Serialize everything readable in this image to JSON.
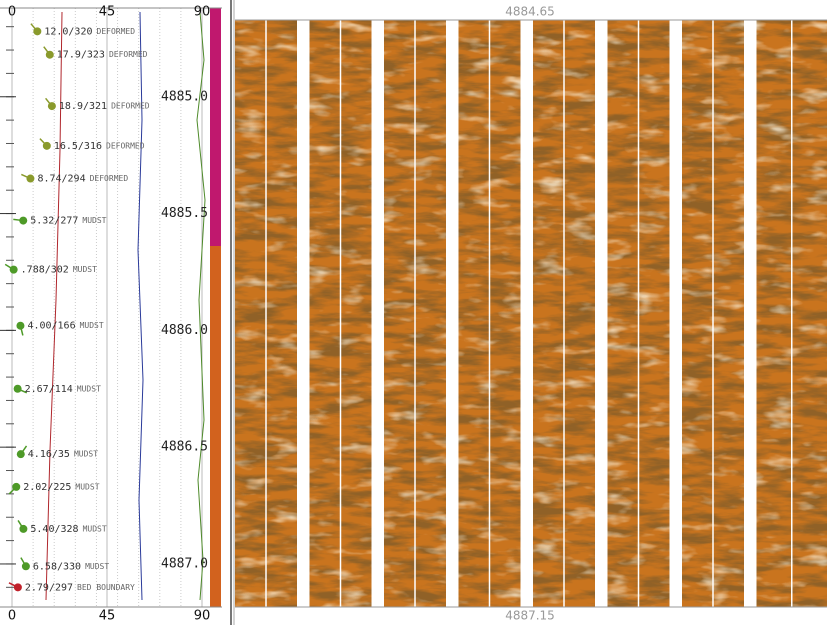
{
  "chart_data": {
    "type": "tadpole",
    "x": [
      12.0,
      17.9,
      18.9,
      16.5,
      8.74,
      5.32,
      0.788,
      4.0,
      2.67,
      4.16,
      2.02,
      5.4,
      6.58,
      2.79
    ],
    "value_labels": [
      "12.0/320",
      "17.9/323",
      "18.9/321",
      "16.5/316",
      "8.74/294",
      "5.32/277",
      ".788/302",
      "4.00/166",
      "2.67/114",
      "4.16/35",
      "2.02/225",
      "5.40/328",
      "6.58/330",
      "2.79/297"
    ],
    "azimuth": [
      320,
      323,
      321,
      316,
      294,
      277,
      302,
      166,
      114,
      35,
      225,
      328,
      330,
      297
    ],
    "y": [
      4884.72,
      4884.82,
      4885.04,
      4885.21,
      4885.35,
      4885.53,
      4885.74,
      4885.98,
      4886.25,
      4886.53,
      4886.67,
      4886.85,
      4887.01,
      4887.1
    ],
    "facies": [
      "DEFORMED",
      "DEFORMED",
      "DEFORMED",
      "DEFORMED",
      "DEFORMED",
      "MUDST",
      "MUDST",
      "MUDST",
      "MUDST",
      "MUDST",
      "MUDST",
      "MUDST",
      "MUDST",
      "BED BOUNDARY"
    ],
    "colors": [
      "#8a9a2c",
      "#8a9a2c",
      "#8a9a2c",
      "#8a9a2c",
      "#8a9a2c",
      "#4e9a28",
      "#4e9a28",
      "#4e9a28",
      "#4e9a28",
      "#4e9a28",
      "#4e9a28",
      "#4e9a28",
      "#4e9a28",
      "#c0202a"
    ],
    "xlim": [
      0,
      90
    ],
    "xticks": [
      0,
      45,
      90
    ],
    "ylim": [
      4884.65,
      4887.15
    ],
    "yticks": [
      {
        "value": 4885.0,
        "label": "4885.0"
      },
      {
        "value": 4885.5,
        "label": "4885.5"
      },
      {
        "value": 4886.0,
        "label": "4886.0"
      },
      {
        "value": 4886.5,
        "label": "4886.5"
      },
      {
        "value": 4887.0,
        "label": "4887.0"
      }
    ],
    "grid": true
  }
}
